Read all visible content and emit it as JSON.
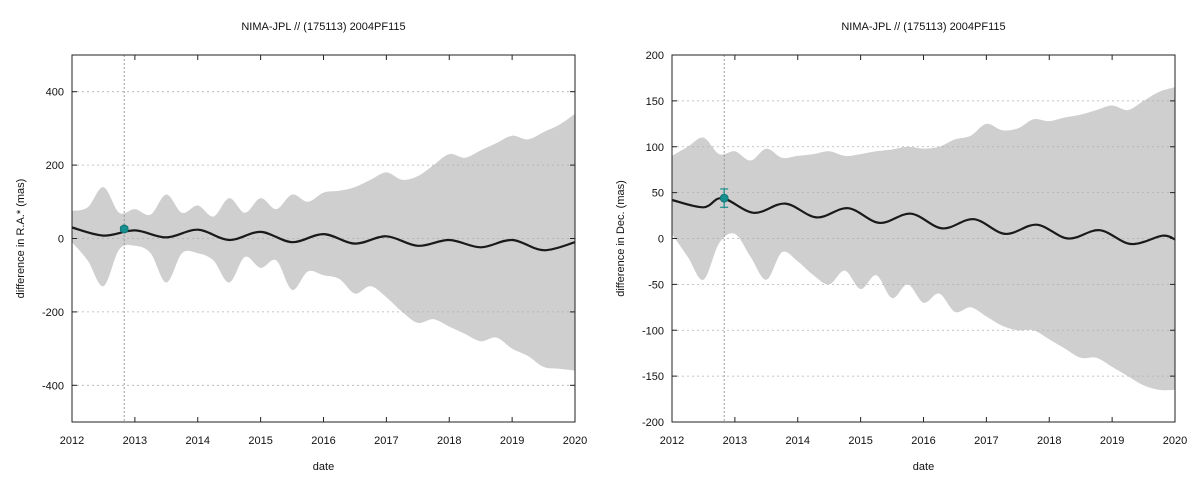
{
  "chart_data": [
    {
      "type": "line",
      "title": "NIMA-JPL // (175113) 2004PF115",
      "xlabel": "date",
      "ylabel": "difference in R.A.* (mas)",
      "xlim": [
        2012,
        2020
      ],
      "ylim": [
        -500,
        500
      ],
      "xticks": [
        2012,
        2013,
        2014,
        2015,
        2016,
        2017,
        2018,
        2019,
        2020
      ],
      "yticks": [
        -400,
        -200,
        0,
        200,
        400
      ],
      "grid": true,
      "series": [
        {
          "x": [
            2012.0,
            2012.5,
            2013.0,
            2013.5,
            2014.0,
            2014.5,
            2015.0,
            2015.5,
            2016.0,
            2016.5,
            2017.0,
            2017.5,
            2018.0,
            2018.5,
            2019.0,
            2019.5,
            2020.0
          ],
          "values": [
            30,
            8,
            22,
            3,
            24,
            -4,
            18,
            -10,
            12,
            -14,
            6,
            -20,
            -4,
            -24,
            -4,
            -32,
            -10
          ]
        }
      ],
      "band": {
        "x": [
          2012.0,
          2012.25,
          2012.5,
          2012.75,
          2013.0,
          2013.25,
          2013.5,
          2013.75,
          2014.0,
          2014.25,
          2014.5,
          2014.75,
          2015.0,
          2015.25,
          2015.5,
          2015.75,
          2016.0,
          2016.25,
          2016.5,
          2016.75,
          2017.0,
          2017.25,
          2017.5,
          2017.75,
          2018.0,
          2018.25,
          2018.5,
          2018.75,
          2019.0,
          2019.25,
          2019.5,
          2019.75,
          2020.0
        ],
        "upper": [
          75,
          85,
          140,
          70,
          80,
          65,
          120,
          70,
          90,
          60,
          110,
          70,
          110,
          80,
          120,
          100,
          125,
          130,
          140,
          160,
          180,
          160,
          170,
          200,
          230,
          220,
          240,
          260,
          280,
          270,
          290,
          310,
          340
        ],
        "lower": [
          -10,
          -60,
          -130,
          -30,
          -20,
          -40,
          -120,
          -40,
          -40,
          -60,
          -120,
          -50,
          -80,
          -60,
          -140,
          -90,
          -100,
          -110,
          -150,
          -130,
          -160,
          -200,
          -230,
          -220,
          -240,
          -260,
          -280,
          -270,
          -300,
          -320,
          -350,
          -355,
          -360
        ]
      },
      "observations": [
        {
          "x": 2012.83,
          "y": 26,
          "err": 6
        }
      ],
      "marker_line_x": 2012.83
    },
    {
      "type": "line",
      "title": "NIMA-JPL // (175113) 2004PF115",
      "xlabel": "date",
      "ylabel": "difference in Dec. (mas)",
      "xlim": [
        2012,
        2020
      ],
      "ylim": [
        -200,
        200
      ],
      "xticks": [
        2012,
        2013,
        2014,
        2015,
        2016,
        2017,
        2018,
        2019,
        2020
      ],
      "yticks": [
        -200,
        -150,
        -100,
        -50,
        0,
        50,
        100,
        150,
        200
      ],
      "grid": true,
      "series": [
        {
          "x": [
            2012.0,
            2012.5,
            2012.8,
            2013.3,
            2013.8,
            2014.3,
            2014.8,
            2015.3,
            2015.8,
            2016.3,
            2016.8,
            2017.3,
            2017.8,
            2018.3,
            2018.8,
            2019.3,
            2019.8,
            2020.0
          ],
          "values": [
            42,
            34,
            44,
            28,
            38,
            23,
            33,
            17,
            27,
            11,
            21,
            5,
            15,
            0,
            9,
            -6,
            3,
            -1
          ]
        }
      ],
      "band": {
        "x": [
          2012.0,
          2012.25,
          2012.5,
          2012.75,
          2013.0,
          2013.25,
          2013.5,
          2013.75,
          2014.0,
          2014.25,
          2014.5,
          2014.75,
          2015.0,
          2015.25,
          2015.5,
          2015.75,
          2016.0,
          2016.25,
          2016.5,
          2016.75,
          2017.0,
          2017.25,
          2017.5,
          2017.75,
          2018.0,
          2018.25,
          2018.5,
          2018.75,
          2019.0,
          2019.25,
          2019.5,
          2019.75,
          2020.0
        ],
        "upper": [
          90,
          100,
          110,
          92,
          95,
          85,
          98,
          88,
          90,
          92,
          95,
          90,
          92,
          95,
          97,
          100,
          98,
          100,
          108,
          112,
          125,
          118,
          120,
          130,
          128,
          132,
          135,
          140,
          145,
          140,
          150,
          160,
          165
        ],
        "lower": [
          5,
          -20,
          -45,
          -5,
          5,
          -20,
          -45,
          -15,
          -25,
          -40,
          -50,
          -35,
          -55,
          -40,
          -65,
          -50,
          -70,
          -60,
          -80,
          -75,
          -85,
          -95,
          -100,
          -100,
          -110,
          -120,
          -130,
          -130,
          -140,
          -150,
          -160,
          -165,
          -165
        ]
      },
      "observations": [
        {
          "x": 2012.83,
          "y": 44,
          "err": 10
        }
      ],
      "marker_line_x": 2012.83
    }
  ]
}
